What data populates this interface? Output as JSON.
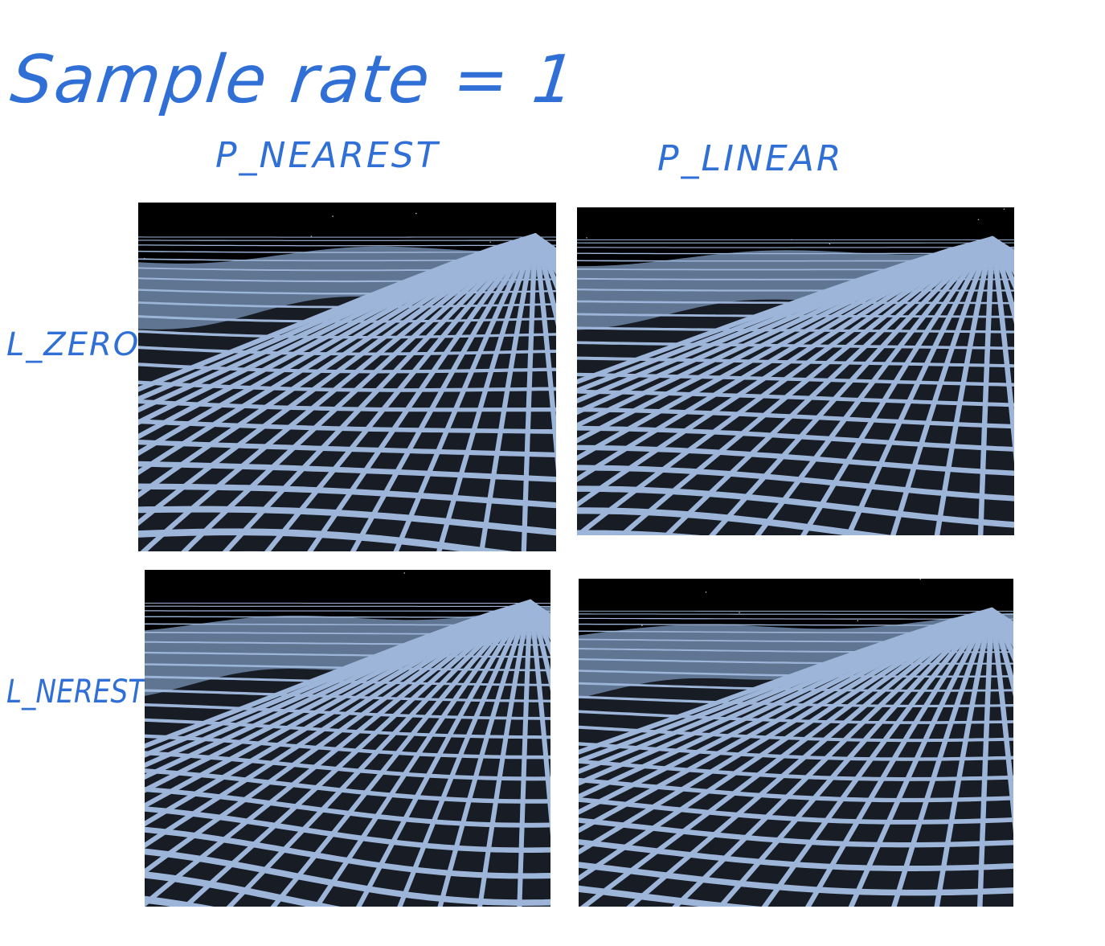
{
  "title": "Sample rate = 1",
  "columns": [
    "P_NEAREST",
    "P_LINEAR"
  ],
  "rows": [
    "L_ZERO",
    "L_NEREST"
  ],
  "colors": {
    "handwriting": "#2f6fd6",
    "terrain": "#5f7592",
    "grid_line": "#9db5d8",
    "background": "#000000"
  }
}
